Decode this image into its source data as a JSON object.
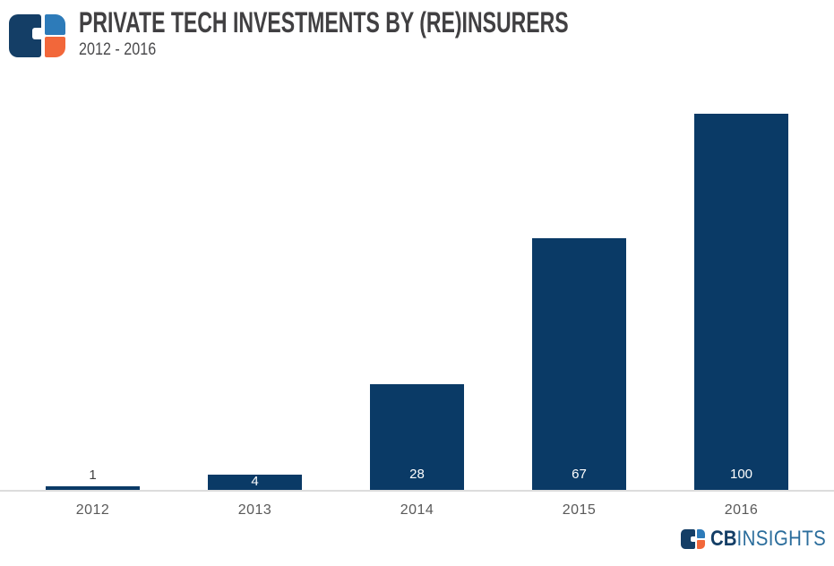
{
  "header": {
    "title": "PRIVATE TECH INVESTMENTS BY (RE)INSURERS",
    "subtitle": "2012 - 2016"
  },
  "chart_data": {
    "type": "bar",
    "categories": [
      "2012",
      "2013",
      "2014",
      "2015",
      "2016"
    ],
    "values": [
      1,
      4,
      28,
      67,
      100
    ],
    "title": "PRIVATE TECH INVESTMENTS BY (RE)INSURERS",
    "subtitle": "2012 - 2016",
    "xlabel": "",
    "ylabel": "",
    "ylim": [
      0,
      105
    ],
    "grid": false,
    "legend": false,
    "value_labels_shown": true,
    "bar_color": "#0a3a66",
    "value_label_inside_color": "#ffffff",
    "value_label_outside_color": "#404040",
    "axis_label_color": "#595959",
    "baseline_color": "#dcdcdc"
  },
  "brand": {
    "navy": "#143e66",
    "blue": "#2d7bb9",
    "orange": "#f2673a",
    "wordmark_blue": "#2b6d9c"
  },
  "footer": {
    "brand_bold": "CB",
    "brand_light": "INSIGHTS"
  }
}
